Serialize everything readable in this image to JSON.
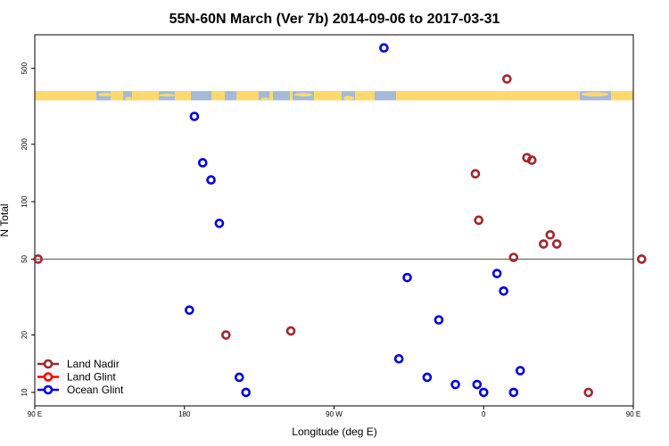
{
  "chart_data": {
    "type": "scatter",
    "title": "55N-60N March (Ver 7b)   2014-09-06 to 2017-03-31",
    "xlabel": "Longitude (deg E)",
    "ylabel": "N Total",
    "x_scale": "linear",
    "y_scale": "log",
    "xlim": [
      90,
      450
    ],
    "ylim": [
      8.5,
      750
    ],
    "x_ticks": [
      {
        "value": 90,
        "label": "90 E"
      },
      {
        "value": 180,
        "label": "180"
      },
      {
        "value": 270,
        "label": "90 W"
      },
      {
        "value": 360,
        "label": "0"
      },
      {
        "value": 450,
        "label": "90 E"
      },
      {
        "value": 540,
        "label": "180"
      }
    ],
    "y_ticks": [
      {
        "value": 10,
        "label": "10"
      },
      {
        "value": 20,
        "label": "20"
      },
      {
        "value": 50,
        "label": "50"
      },
      {
        "value": 100,
        "label": "100"
      },
      {
        "value": 200,
        "label": "200"
      },
      {
        "value": 500,
        "label": "500"
      }
    ],
    "reference_line": {
      "y": 50
    },
    "land_mask_band": {
      "y_range": [
        340,
        380
      ],
      "land_color": "#FFD970",
      "ocean_color": "#A4BAD6"
    },
    "grid": false,
    "legend_position": "bottom-left",
    "series": [
      {
        "name": "Land Nadir",
        "color": "#A0282C",
        "points": [
          {
            "x": 92,
            "y": 50
          },
          {
            "x": 205,
            "y": 20
          },
          {
            "x": 244,
            "y": 21
          },
          {
            "x": 355,
            "y": 140
          },
          {
            "x": 357,
            "y": 80
          },
          {
            "x": 374,
            "y": 440
          },
          {
            "x": 378,
            "y": 51
          },
          {
            "x": 386,
            "y": 170
          },
          {
            "x": 389,
            "y": 165
          },
          {
            "x": 396,
            "y": 60
          },
          {
            "x": 400,
            "y": 67
          },
          {
            "x": 404,
            "y": 60
          },
          {
            "x": 423,
            "y": 10
          },
          {
            "x": 455,
            "y": 50
          }
        ]
      },
      {
        "name": "Land Glint",
        "color": "#FF0000",
        "points": []
      },
      {
        "name": "Ocean Glint",
        "color": "#0000DD",
        "points": [
          {
            "x": 183,
            "y": 27
          },
          {
            "x": 186,
            "y": 280
          },
          {
            "x": 191,
            "y": 160
          },
          {
            "x": 196,
            "y": 130
          },
          {
            "x": 201,
            "y": 77
          },
          {
            "x": 213,
            "y": 12
          },
          {
            "x": 217,
            "y": 10
          },
          {
            "x": 300,
            "y": 640
          },
          {
            "x": 309,
            "y": 15
          },
          {
            "x": 314,
            "y": 40
          },
          {
            "x": 326,
            "y": 12
          },
          {
            "x": 333,
            "y": 24
          },
          {
            "x": 343,
            "y": 11
          },
          {
            "x": 356,
            "y": 11
          },
          {
            "x": 360,
            "y": 10
          },
          {
            "x": 368,
            "y": 42
          },
          {
            "x": 372,
            "y": 34
          },
          {
            "x": 378,
            "y": 10
          },
          {
            "x": 382,
            "y": 13
          }
        ]
      }
    ]
  }
}
